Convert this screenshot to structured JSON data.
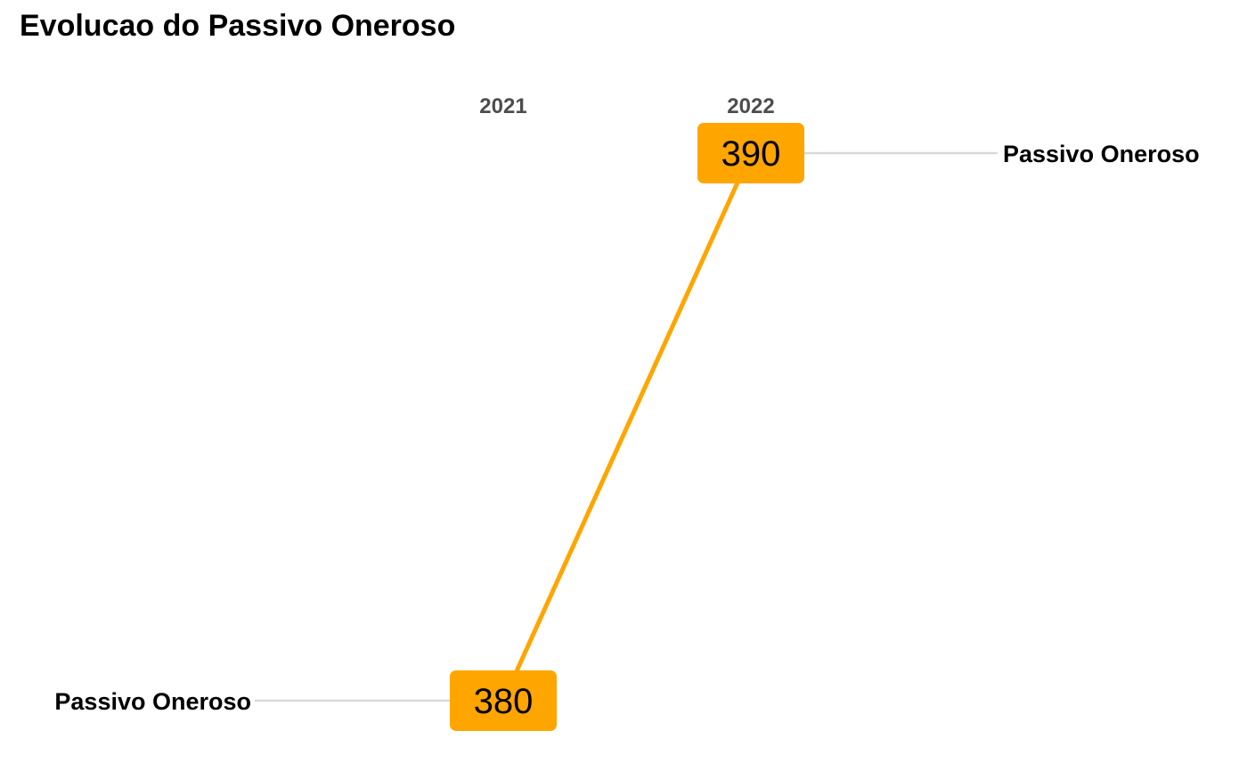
{
  "chart_data": {
    "type": "line",
    "title": "Evolucao do Passivo Oneroso",
    "subtitle": "",
    "xlabel": "",
    "ylabel": "",
    "categories": [
      "2021",
      "2022"
    ],
    "series": [
      {
        "name": "Passivo Oneroso",
        "values": [
          380,
          390
        ],
        "color": "#FFA500"
      }
    ],
    "ylim": [
      380,
      390
    ],
    "grid": false,
    "legend": "none"
  },
  "colors": {
    "accent": "#FFA500",
    "guide_line": "#d9d9d9",
    "year_label": "#4d4d4d",
    "text": "#000000"
  }
}
